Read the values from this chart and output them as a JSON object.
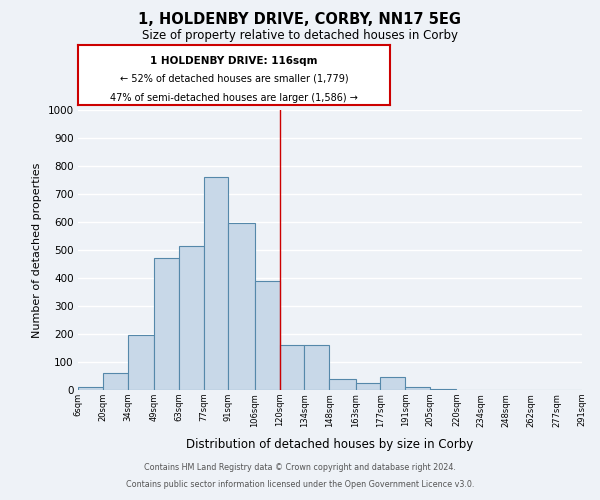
{
  "title": "1, HOLDENBY DRIVE, CORBY, NN17 5EG",
  "subtitle": "Size of property relative to detached houses in Corby",
  "xlabel": "Distribution of detached houses by size in Corby",
  "ylabel": "Number of detached properties",
  "bin_labels": [
    "6sqm",
    "20sqm",
    "34sqm",
    "49sqm",
    "63sqm",
    "77sqm",
    "91sqm",
    "106sqm",
    "120sqm",
    "134sqm",
    "148sqm",
    "163sqm",
    "177sqm",
    "191sqm",
    "205sqm",
    "220sqm",
    "234sqm",
    "248sqm",
    "262sqm",
    "277sqm",
    "291sqm"
  ],
  "bar_heights": [
    10,
    60,
    195,
    470,
    515,
    760,
    595,
    390,
    160,
    160,
    40,
    25,
    45,
    10,
    5,
    0,
    0,
    0,
    0,
    0
  ],
  "bar_color": "#c8d8e8",
  "bar_edgecolor": "#5588aa",
  "vline_color": "#cc0000",
  "ylim": [
    0,
    1000
  ],
  "yticks": [
    0,
    100,
    200,
    300,
    400,
    500,
    600,
    700,
    800,
    900,
    1000
  ],
  "annotation_title": "1 HOLDENBY DRIVE: 116sqm",
  "annotation_line1": "← 52% of detached houses are smaller (1,779)",
  "annotation_line2": "47% of semi-detached houses are larger (1,586) →",
  "annotation_box_color": "#cc0000",
  "footer_line1": "Contains HM Land Registry data © Crown copyright and database right 2024.",
  "footer_line2": "Contains public sector information licensed under the Open Government Licence v3.0.",
  "bg_color": "#eef2f7",
  "grid_color": "#ffffff",
  "bin_edges_values": [
    6,
    20,
    34,
    49,
    63,
    77,
    91,
    106,
    120,
    134,
    148,
    163,
    177,
    191,
    205,
    220,
    234,
    248,
    262,
    277,
    291
  ]
}
